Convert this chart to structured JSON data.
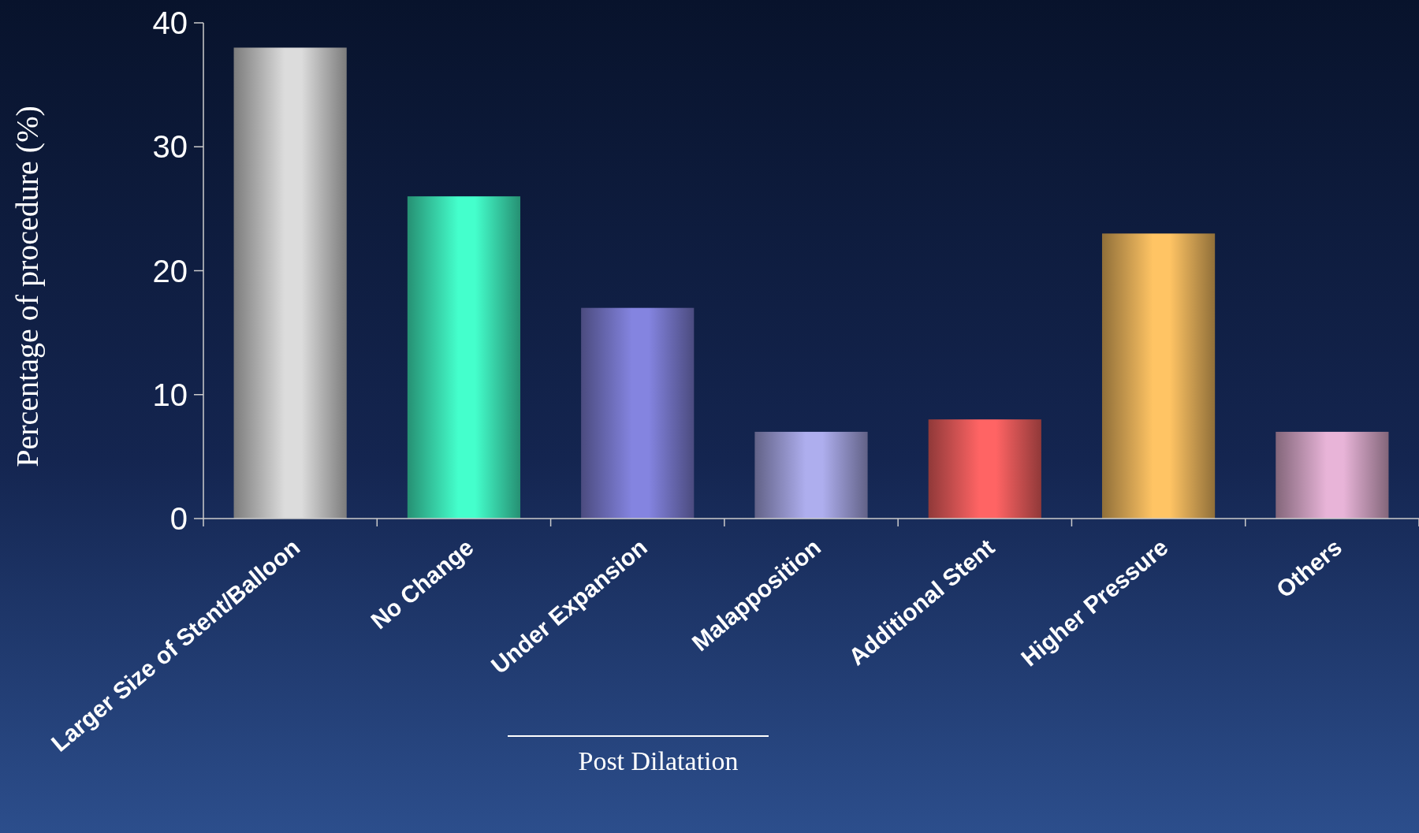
{
  "chart_data": {
    "type": "bar",
    "ylabel": "Percentage of procedure (%)",
    "categories": [
      "Larger Size of Stent/Balloon",
      "No Change",
      "Under Expansion",
      "Malapposition",
      "Additional Stent",
      "Higher Pressure",
      "Others"
    ],
    "values": [
      38,
      26,
      17,
      7,
      8,
      23,
      7
    ],
    "colors": [
      "#dcdcdc",
      "#44ffcc",
      "#8484e0",
      "#aeaeee",
      "#ff6464",
      "#ffc464",
      "#e8b4d8"
    ],
    "ylim": [
      0,
      40
    ],
    "yticks": [
      0,
      10,
      20,
      30,
      40
    ],
    "annotations": [
      "Post Dilatation"
    ]
  }
}
